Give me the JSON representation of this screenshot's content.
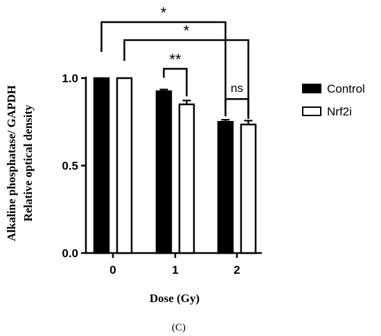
{
  "chart_data": {
    "type": "bar",
    "categories": [
      "0",
      "1",
      "2"
    ],
    "series": [
      {
        "name": "Control",
        "values": [
          1.0,
          0.925,
          0.75
        ],
        "errors": [
          0.0,
          0.01,
          0.012
        ],
        "color": "#000000"
      },
      {
        "name": "Nrf2i",
        "values": [
          1.0,
          0.85,
          0.735
        ],
        "errors": [
          0.0,
          0.022,
          0.022
        ],
        "color": "#ffffff"
      }
    ],
    "xlabel": "Dose (Gy)",
    "ylabel_lines": [
      "Alkaline phosphatase/ GAPDH",
      "Relative optical density"
    ],
    "ylim": [
      0,
      1.0
    ],
    "yticks": [
      {
        "value": 0.0,
        "label": "0.0"
      },
      {
        "value": 0.5,
        "label": "0.5"
      },
      {
        "value": 1.0,
        "label": "1.0"
      }
    ],
    "legend_position": "right",
    "panel_label": "(C)",
    "significance": [
      {
        "label": "*",
        "from": {
          "category": 0,
          "series": 0
        },
        "to": {
          "category": 2,
          "series": 0
        },
        "level": 3
      },
      {
        "label": "*",
        "from": {
          "category": 0,
          "series": 1
        },
        "to": {
          "category": 2,
          "series": 1
        },
        "level": 2
      },
      {
        "label": "**",
        "from": {
          "category": 1,
          "series": 0
        },
        "to": {
          "category": 1,
          "series": 1
        },
        "level": 1
      },
      {
        "label": "ns",
        "from": {
          "category": 2,
          "series": 0
        },
        "to": {
          "category": 2,
          "series": 1
        },
        "level": 1
      }
    ]
  }
}
